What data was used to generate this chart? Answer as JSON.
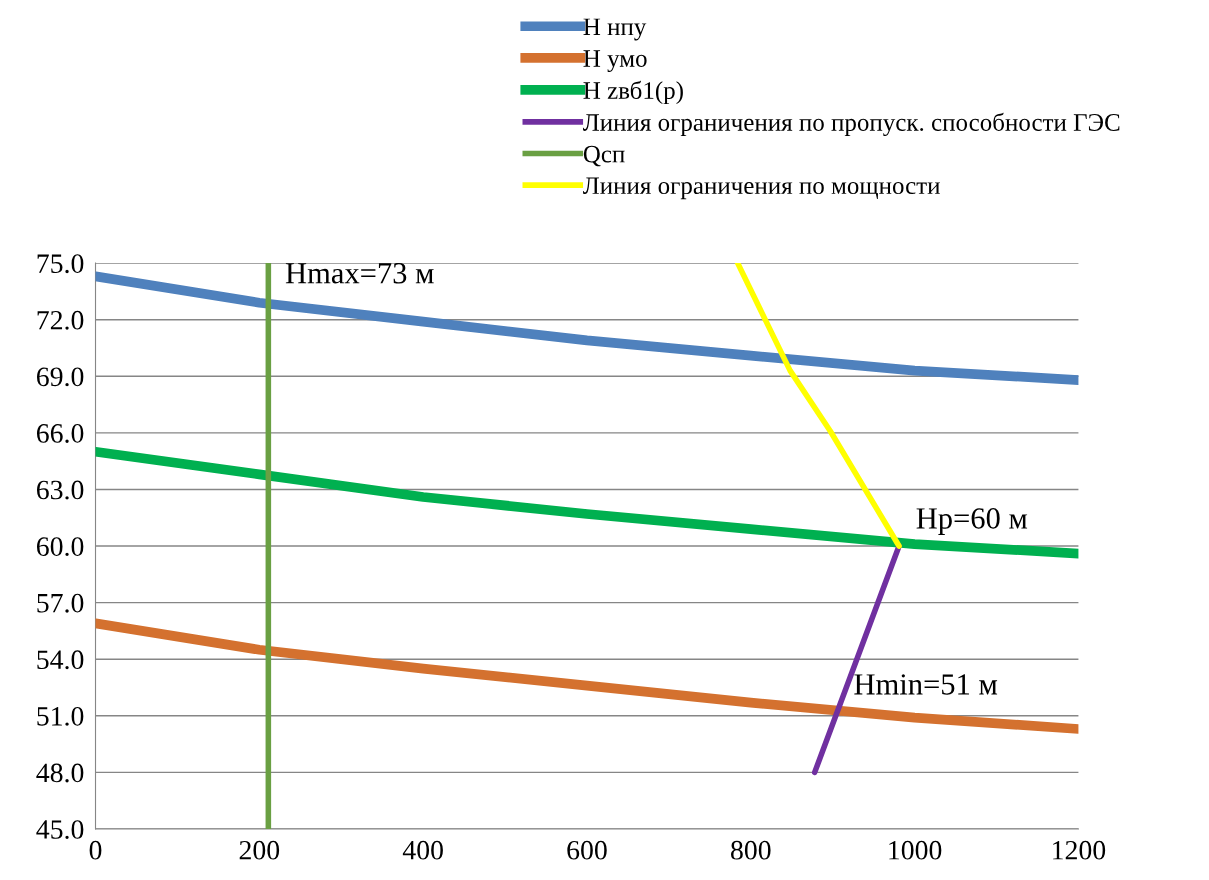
{
  "chart_data": {
    "type": "line",
    "legend": "top",
    "grid": "y",
    "marker": "none",
    "line_style": "solid",
    "xlim": [
      0,
      1200
    ],
    "xticks": [
      0,
      200,
      400,
      600,
      800,
      1000,
      1200
    ],
    "ylim": [
      45,
      75
    ],
    "yticks": [
      {
        "value": 45,
        "label": "45.0"
      },
      {
        "value": 48,
        "label": "48.0"
      },
      {
        "value": 51,
        "label": "51.0"
      },
      {
        "value": 54,
        "label": "54.0"
      },
      {
        "value": 57,
        "label": "57.0"
      },
      {
        "value": 60,
        "label": "60.0"
      },
      {
        "value": 63,
        "label": "63.0"
      },
      {
        "value": 66,
        "label": "66.0"
      },
      {
        "value": 69,
        "label": "69.0"
      },
      {
        "value": 72,
        "label": "72.0"
      },
      {
        "value": 75,
        "label": "75.0"
      }
    ],
    "series": [
      {
        "name": "Н нпу",
        "color": "#4f81bd",
        "x": [
          0,
          200,
          400,
          600,
          800,
          1000,
          1200
        ],
        "values": [
          74.3,
          72.9,
          71.9,
          70.9,
          70.1,
          69.3,
          68.8
        ]
      },
      {
        "name": "Н умо",
        "color": "#d4712f",
        "x": [
          0,
          200,
          400,
          600,
          800,
          1000,
          1200
        ],
        "values": [
          55.9,
          54.5,
          53.5,
          52.6,
          51.7,
          50.9,
          50.3
        ]
      },
      {
        "name": "Н zвб1(р)",
        "color": "#00b050",
        "x": [
          0,
          200,
          400,
          600,
          800,
          1000,
          1200
        ],
        "values": [
          65.0,
          63.8,
          62.6,
          61.7,
          60.9,
          60.1,
          59.6
        ]
      },
      {
        "name": "Линия ограничения по пропуск. способности ГЭС",
        "color": "#7030a0",
        "x": [
          878,
          981
        ],
        "values": [
          48.0,
          60.0
        ]
      },
      {
        "name": "Qсп",
        "color": "#6aa043",
        "x": [
          211,
          211
        ],
        "values": [
          45,
          75
        ]
      },
      {
        "name": "Линия ограничения по мощности",
        "color": "#ffff00",
        "x": [
          784,
          848,
          897,
          981
        ],
        "values": [
          75,
          69.3,
          66.1,
          60.0
        ]
      }
    ],
    "annotations": [
      {
        "text": "Hmax=73 м",
        "x": 211,
        "y": 73
      },
      {
        "text": "Hp=60 м",
        "x": 981,
        "y": 60
      },
      {
        "text": "Hmin=51 м",
        "x": 905,
        "y": 51.2
      }
    ]
  }
}
